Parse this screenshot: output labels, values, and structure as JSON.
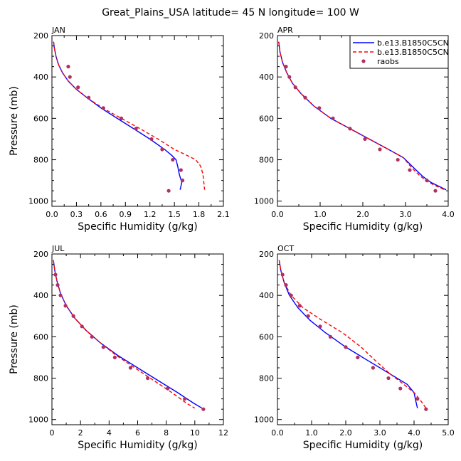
{
  "figure_title": "Great_Plains_USA  latitude= 45 N longitude= 100 W",
  "legend": {
    "entries": [
      "b.e13.B1850C5CN",
      "b.e13.B1850C5CN",
      "raobs"
    ],
    "colors": [
      "#0000ff",
      "#ff0000",
      "#b03060"
    ]
  },
  "colors": {
    "model1": "#0000ff",
    "model2": "#ff0000",
    "raobs": "#b03060"
  },
  "chart_data": [
    {
      "type": "line",
      "panel": "JAN",
      "xlabel": "Specific Humidity (g/kg)",
      "ylabel": "Pressure (mb)",
      "xlim": [
        0,
        2.1
      ],
      "ylim": [
        1025,
        200
      ],
      "xticks": [
        0.0,
        0.3,
        0.6,
        0.9,
        1.2,
        1.5,
        1.8,
        2.1
      ],
      "xtick_labels": [
        "0.0",
        "0.3",
        "0.6",
        "0.9",
        "1.2",
        "1.5",
        "1.8",
        "2.1"
      ],
      "yticks": [
        200,
        400,
        600,
        800,
        1000
      ],
      "ytick_labels": [
        "200",
        "400",
        "600",
        "800",
        "1000"
      ],
      "series": [
        {
          "name": "b.e13.B1850C5CN",
          "style": "solid",
          "color": "#0000ff",
          "x": [
            0.02,
            0.03,
            0.05,
            0.08,
            0.13,
            0.2,
            0.3,
            0.43,
            0.6,
            0.8,
            1.0,
            1.2,
            1.38,
            1.47,
            1.52,
            1.54,
            1.56,
            1.59,
            1.57
          ],
          "y": [
            230,
            260,
            300,
            340,
            380,
            420,
            460,
            500,
            550,
            600,
            650,
            700,
            750,
            780,
            800,
            830,
            870,
            910,
            945
          ]
        },
        {
          "name": "b.e13.B1850C5CN",
          "style": "dashed",
          "color": "#ff0000",
          "x": [
            0.02,
            0.03,
            0.05,
            0.08,
            0.13,
            0.2,
            0.3,
            0.43,
            0.62,
            0.85,
            1.08,
            1.3,
            1.5,
            1.66,
            1.76,
            1.82,
            1.85,
            1.86,
            1.87
          ],
          "y": [
            230,
            260,
            300,
            340,
            380,
            420,
            460,
            500,
            550,
            600,
            650,
            700,
            750,
            780,
            800,
            830,
            870,
            910,
            945
          ]
        },
        {
          "name": "raobs",
          "style": "markers",
          "color": "#b03060",
          "x": [
            0.2,
            0.22,
            0.32,
            0.45,
            0.63,
            0.85,
            1.03,
            1.22,
            1.35,
            1.48,
            1.58,
            1.6,
            1.43
          ],
          "y": [
            350,
            400,
            450,
            500,
            550,
            600,
            650,
            700,
            750,
            800,
            850,
            900,
            950
          ]
        }
      ]
    },
    {
      "type": "line",
      "panel": "APR",
      "xlabel": "Specific Humidity (g/kg)",
      "ylabel": "",
      "xlim": [
        0,
        4.0
      ],
      "ylim": [
        1025,
        200
      ],
      "xticks": [
        0.0,
        1.0,
        2.0,
        3.0,
        4.0
      ],
      "xtick_labels": [
        "0.0",
        "1.0",
        "2.0",
        "3.0",
        "4.0"
      ],
      "yticks": [
        200,
        400,
        600,
        800,
        1000
      ],
      "ytick_labels": [
        "200",
        "400",
        "600",
        "800",
        "1000"
      ],
      "series": [
        {
          "name": "b.e13.B1850C5CN",
          "style": "solid",
          "color": "#0000ff",
          "x": [
            0.03,
            0.06,
            0.12,
            0.22,
            0.35,
            0.55,
            0.85,
            1.25,
            1.7,
            2.15,
            2.6,
            2.95,
            3.2,
            3.4,
            3.6,
            3.8,
            3.95
          ],
          "y": [
            230,
            280,
            330,
            380,
            430,
            480,
            540,
            600,
            650,
            700,
            750,
            790,
            840,
            880,
            910,
            930,
            945
          ]
        },
        {
          "name": "b.e13.B1850C5CN",
          "style": "dashed",
          "color": "#ff0000",
          "x": [
            0.03,
            0.06,
            0.12,
            0.22,
            0.35,
            0.55,
            0.85,
            1.25,
            1.7,
            2.15,
            2.6,
            2.95,
            3.15,
            3.35,
            3.55,
            3.75,
            3.92
          ],
          "y": [
            230,
            280,
            330,
            380,
            430,
            480,
            540,
            600,
            650,
            700,
            750,
            790,
            840,
            880,
            910,
            930,
            945
          ]
        },
        {
          "name": "raobs",
          "style": "markers",
          "color": "#b03060",
          "x": [
            0.2,
            0.28,
            0.42,
            0.65,
            0.98,
            1.3,
            1.7,
            2.05,
            2.4,
            2.82,
            3.1,
            3.5,
            3.7
          ],
          "y": [
            350,
            400,
            450,
            500,
            550,
            600,
            650,
            700,
            750,
            800,
            850,
            900,
            950
          ]
        }
      ]
    },
    {
      "type": "line",
      "panel": "JUL",
      "xlabel": "Specific Humidity (g/kg)",
      "ylabel": "Pressure (mb)",
      "xlim": [
        0,
        12
      ],
      "ylim": [
        1025,
        200
      ],
      "xticks": [
        0,
        2,
        4,
        6,
        8,
        10,
        12
      ],
      "xtick_labels": [
        "0",
        "2",
        "4",
        "6",
        "8",
        "10",
        "12"
      ],
      "yticks": [
        200,
        400,
        600,
        800,
        1000
      ],
      "ytick_labels": [
        "200",
        "400",
        "600",
        "800",
        "1000"
      ],
      "series": [
        {
          "name": "b.e13.B1850C5CN",
          "style": "solid",
          "color": "#0000ff",
          "x": [
            0.1,
            0.2,
            0.35,
            0.6,
            1.0,
            1.6,
            2.4,
            3.4,
            4.6,
            6.0,
            7.4,
            8.8,
            9.9,
            10.5
          ],
          "y": [
            230,
            280,
            330,
            390,
            450,
            510,
            570,
            630,
            690,
            750,
            810,
            870,
            920,
            945
          ]
        },
        {
          "name": "b.e13.B1850C5CN",
          "style": "dashed",
          "color": "#ff0000",
          "x": [
            0.1,
            0.2,
            0.35,
            0.6,
            1.0,
            1.6,
            2.4,
            3.4,
            4.5,
            5.8,
            7.1,
            8.4,
            9.4,
            10.0
          ],
          "y": [
            230,
            280,
            330,
            390,
            450,
            510,
            570,
            630,
            690,
            750,
            810,
            870,
            920,
            945
          ]
        },
        {
          "name": "raobs",
          "style": "markers",
          "color": "#b03060",
          "x": [
            0.25,
            0.4,
            0.6,
            0.95,
            1.5,
            2.1,
            2.8,
            3.6,
            4.4,
            5.5,
            6.7,
            8.1,
            9.3,
            10.6
          ],
          "y": [
            300,
            350,
            400,
            450,
            500,
            550,
            600,
            650,
            700,
            750,
            800,
            850,
            900,
            950
          ]
        }
      ]
    },
    {
      "type": "line",
      "panel": "OCT",
      "xlabel": "Specific Humidity (g/kg)",
      "ylabel": "",
      "xlim": [
        0,
        5.0
      ],
      "ylim": [
        1025,
        200
      ],
      "xticks": [
        0.0,
        1.0,
        2.0,
        3.0,
        4.0,
        5.0
      ],
      "xtick_labels": [
        "0.0",
        "1.0",
        "2.0",
        "3.0",
        "4.0",
        "5.0"
      ],
      "yticks": [
        200,
        400,
        600,
        800,
        1000
      ],
      "ytick_labels": [
        "200",
        "400",
        "600",
        "800",
        "1000"
      ],
      "series": [
        {
          "name": "b.e13.B1850C5CN",
          "style": "solid",
          "color": "#0000ff",
          "x": [
            0.05,
            0.1,
            0.2,
            0.35,
            0.6,
            0.95,
            1.4,
            2.0,
            2.7,
            3.3,
            3.8,
            4.0,
            4.05,
            4.1
          ],
          "y": [
            230,
            280,
            340,
            400,
            460,
            520,
            580,
            650,
            720,
            780,
            830,
            870,
            910,
            945
          ]
        },
        {
          "name": "b.e13.B1850C5CN",
          "style": "dashed",
          "color": "#ff0000",
          "x": [
            0.05,
            0.1,
            0.2,
            0.4,
            0.75,
            1.3,
            1.9,
            2.45,
            2.9,
            3.3,
            3.7,
            4.0,
            4.2,
            4.35
          ],
          "y": [
            230,
            280,
            340,
            400,
            460,
            520,
            580,
            650,
            720,
            780,
            830,
            870,
            910,
            945
          ]
        },
        {
          "name": "raobs",
          "style": "markers",
          "color": "#b03060",
          "x": [
            0.15,
            0.25,
            0.4,
            0.65,
            0.9,
            1.25,
            1.55,
            2.0,
            2.35,
            2.8,
            3.25,
            3.6,
            4.1,
            4.35
          ],
          "y": [
            300,
            350,
            400,
            450,
            500,
            550,
            600,
            650,
            700,
            750,
            800,
            850,
            900,
            950
          ]
        }
      ]
    }
  ]
}
